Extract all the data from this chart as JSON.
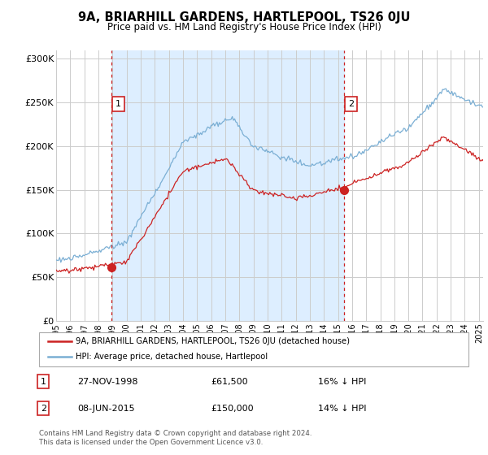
{
  "title": "9A, BRIARHILL GARDENS, HARTLEPOOL, TS26 0JU",
  "subtitle": "Price paid vs. HM Land Registry's House Price Index (HPI)",
  "legend_line1": "9A, BRIARHILL GARDENS, HARTLEPOOL, TS26 0JU (detached house)",
  "legend_line2": "HPI: Average price, detached house, Hartlepool",
  "annotation1_date": "27-NOV-1998",
  "annotation1_price": "£61,500",
  "annotation1_hpi": "16% ↓ HPI",
  "annotation2_date": "08-JUN-2015",
  "annotation2_price": "£150,000",
  "annotation2_hpi": "14% ↓ HPI",
  "footer": "Contains HM Land Registry data © Crown copyright and database right 2024.\nThis data is licensed under the Open Government Licence v3.0.",
  "sale1_year": 1998.92,
  "sale1_price": 61500,
  "sale2_year": 2015.44,
  "sale2_price": 150000,
  "hpi_color": "#7bafd4",
  "price_color": "#cc2222",
  "vline_color": "#cc2222",
  "grid_color": "#cccccc",
  "shade_color": "#ddeeff",
  "background_color": "#ffffff",
  "ylim_min": 0,
  "ylim_max": 310000,
  "xlim_min": 1995.0,
  "xlim_max": 2025.3,
  "ytick_vals": [
    0,
    50000,
    100000,
    150000,
    200000,
    250000,
    300000
  ],
  "ytick_labels": [
    "£0",
    "£50K",
    "£100K",
    "£150K",
    "£200K",
    "£250K",
    "£300K"
  ]
}
